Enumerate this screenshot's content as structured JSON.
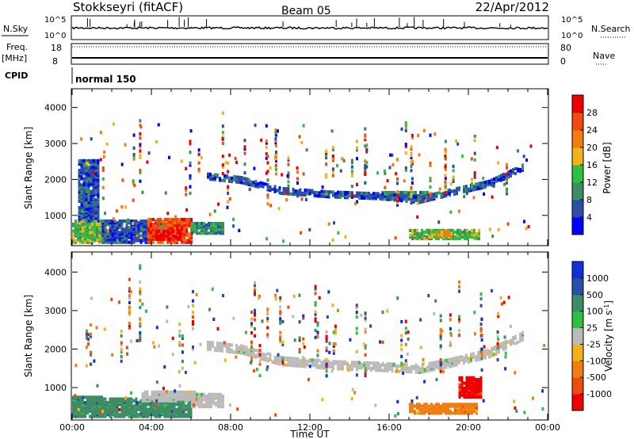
{
  "header": {
    "station": "Stokkseyri (fitACF)",
    "beam": "Beam 05",
    "date": "22/Apr/2012"
  },
  "status_panels": {
    "nsky_label": "N.Sky",
    "nsky_ticks": [
      "10^5",
      "10^0"
    ],
    "nsearch_label": "N.Search",
    "freq_label_1": "Freq.",
    "freq_label_2": "[MHz]",
    "freq_ticks": [
      "18",
      "8"
    ],
    "nave_ticks": [
      "80",
      "0"
    ],
    "nave_label": "Nave",
    "cpid_label": "CPID",
    "cpid_value": "normal 150"
  },
  "colors": {
    "power": [
      "#0000ff",
      "#2b4fa8",
      "#3c8c64",
      "#2fbf42",
      "#f2b21a",
      "#f07d12",
      "#f04a0e",
      "#ee0000"
    ],
    "velocity": [
      "#ee0000",
      "#f04a0e",
      "#f07d12",
      "#f2b21a",
      "#bbbbbb",
      "#2fbf42",
      "#3c8c64",
      "#2b4fa8",
      "#1030d8"
    ]
  },
  "chart_data": [
    {
      "type": "heatmap",
      "name": "power",
      "xlabel": "",
      "ylabel": "Slant Range [km]",
      "xlim": [
        0,
        24
      ],
      "ylim": [
        180,
        4500
      ],
      "yticks": [
        1000,
        2000,
        3000,
        4000
      ],
      "colorbar": {
        "label": "Power [dB]",
        "ticks": [
          "4",
          "8",
          "12",
          "16",
          "20",
          "24",
          "28"
        ],
        "range": [
          0,
          32
        ]
      },
      "regions": [
        {
          "x0": 0.0,
          "x1": 1.5,
          "y0": 300,
          "y1": 900,
          "level": 3
        },
        {
          "x0": 1.5,
          "x1": 3.8,
          "y0": 300,
          "y1": 900,
          "level": 1
        },
        {
          "x0": 3.8,
          "x1": 6.0,
          "y0": 300,
          "y1": 950,
          "level": 6
        },
        {
          "x0": 4.2,
          "x1": 5.5,
          "y0": 380,
          "y1": 620,
          "level": 7
        },
        {
          "x0": 6.0,
          "x1": 7.6,
          "y0": 550,
          "y1": 850,
          "level": 2
        },
        {
          "x0": 17.0,
          "x1": 20.6,
          "y0": 400,
          "y1": 650,
          "level": 3
        },
        {
          "x0": 18.0,
          "x1": 19.2,
          "y0": 450,
          "y1": 600,
          "level": 4
        },
        {
          "x0": 15.6,
          "x1": 18.0,
          "y0": 1500,
          "y1": 1700,
          "level": 2
        },
        {
          "x0": 0.3,
          "x1": 1.3,
          "y0": 900,
          "y1": 2600,
          "level": 1
        }
      ],
      "tracks": [
        {
          "points": [
            [
              6.8,
              2150
            ],
            [
              8.5,
              2050
            ],
            [
              10.5,
              1750
            ],
            [
              13.0,
              1650
            ],
            [
              15.5,
              1600
            ],
            [
              17.5,
              1500
            ],
            [
              19.0,
              1700
            ],
            [
              21.0,
              1950
            ],
            [
              22.7,
              2400
            ]
          ],
          "half_width": 90,
          "level": 1
        }
      ]
    },
    {
      "type": "heatmap",
      "name": "velocity",
      "xlabel": "Time UT",
      "ylabel": "Slant Range [km]",
      "xlim": [
        0,
        24
      ],
      "ylim": [
        180,
        4500
      ],
      "yticks": [
        1000,
        2000,
        3000,
        4000
      ],
      "xticks": [
        "00:00",
        "04:00",
        "08:00",
        "12:00",
        "16:00",
        "20:00",
        "00:00"
      ],
      "colorbar": {
        "label": "Velocity [m s^-1]",
        "ticks": [
          "-1000",
          "-500",
          "-100",
          "-25",
          "25",
          "100",
          "500",
          "1000"
        ],
        "range": [
          0,
          9
        ]
      },
      "regions": [
        {
          "x0": 0.0,
          "x1": 1.5,
          "y0": 250,
          "y1": 800,
          "level": 6
        },
        {
          "x0": 1.5,
          "x1": 6.0,
          "y0": 250,
          "y1": 750,
          "level": 6
        },
        {
          "x0": 3.5,
          "x1": 6.2,
          "y0": 700,
          "y1": 950,
          "level": 4
        },
        {
          "x0": 6.0,
          "x1": 7.6,
          "y0": 550,
          "y1": 900,
          "level": 4
        },
        {
          "x0": 17.0,
          "x1": 20.4,
          "y0": 380,
          "y1": 650,
          "level": 2
        },
        {
          "x0": 19.5,
          "x1": 20.6,
          "y0": 800,
          "y1": 1300,
          "level": 0
        }
      ],
      "tracks": [
        {
          "points": [
            [
              6.8,
              2150
            ],
            [
              8.5,
              2050
            ],
            [
              10.5,
              1750
            ],
            [
              13.0,
              1650
            ],
            [
              15.5,
              1600
            ],
            [
              17.5,
              1550
            ],
            [
              19.0,
              1700
            ],
            [
              21.0,
              1950
            ],
            [
              22.7,
              2400
            ]
          ],
          "half_width": 110,
          "level": 4
        }
      ]
    }
  ]
}
